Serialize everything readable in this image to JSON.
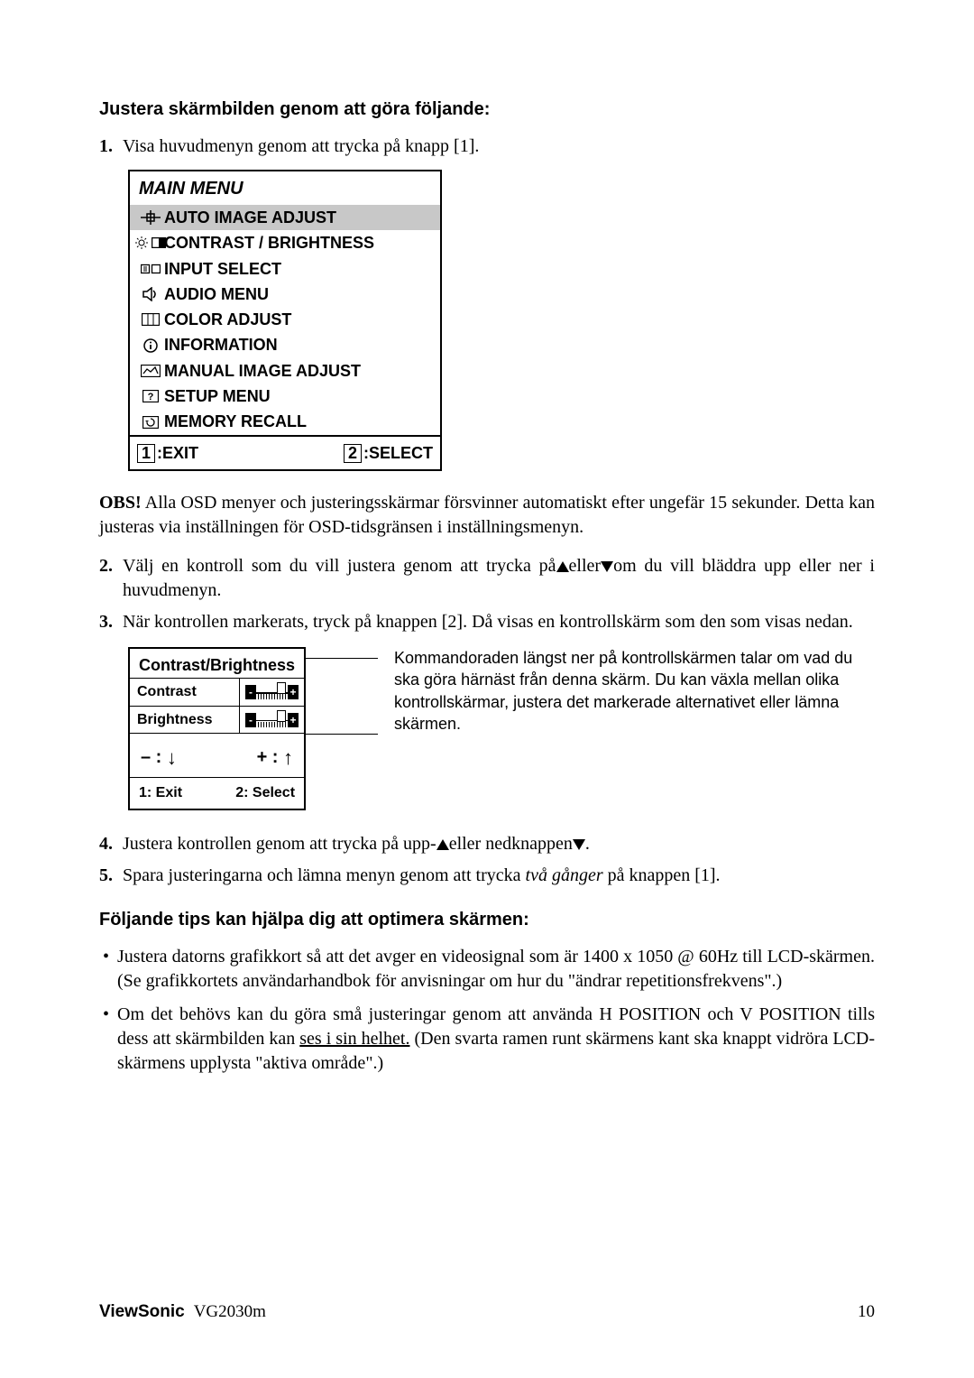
{
  "heading1": "Justera skärmbilden genom att göra följande:",
  "step1": {
    "num": "1.",
    "text": "Visa huvudmenyn genom att trycka på knapp [1]."
  },
  "osd": {
    "title": "MAIN MENU",
    "items": [
      {
        "label": "AUTO IMAGE ADJUST",
        "icon": "crosshair-icon",
        "selected": true
      },
      {
        "label": "CONTRAST / BRIGHTNESS",
        "icon": "contrast-brightness-icon",
        "selected": false
      },
      {
        "label": "INPUT SELECT",
        "icon": "input-select-icon",
        "selected": false
      },
      {
        "label": "AUDIO MENU",
        "icon": "audio-icon",
        "selected": false
      },
      {
        "label": "COLOR ADJUST",
        "icon": "color-adjust-icon",
        "selected": false
      },
      {
        "label": "INFORMATION",
        "icon": "info-icon",
        "selected": false
      },
      {
        "label": "MANUAL IMAGE ADJUST",
        "icon": "manual-adjust-icon",
        "selected": false
      },
      {
        "label": "SETUP MENU",
        "icon": "setup-menu-icon",
        "selected": false
      },
      {
        "label": "MEMORY RECALL",
        "icon": "memory-recall-icon",
        "selected": false
      }
    ],
    "footer": {
      "key1": "1",
      "lab1": ":EXIT",
      "key2": "2",
      "lab2": ":SELECT"
    }
  },
  "note": {
    "label": "OBS!",
    "text": " Alla OSD menyer och justeringsskärmar försvinner automatiskt efter ungefär 15 sekunder. Detta kan justeras via inställningen för OSD-tidsgränsen i inställningsmenyn."
  },
  "step2": {
    "num": "2.",
    "pre": "Välj en kontroll som du vill justera genom att trycka på",
    "mid": "eller",
    "post": "om du vill bläddra upp eller ner i huvudmenyn."
  },
  "step3": {
    "num": "3.",
    "text": "När kontrollen markerats, tryck på knappen [2]. Då visas en kontrollskärm som den som visas nedan."
  },
  "cb": {
    "title": "Contrast/Brightness",
    "row1": "Contrast",
    "row2": "Brightness",
    "mleft": "– :",
    "mright": "+ :",
    "fleft": "1: Exit",
    "fright": "2: Select"
  },
  "callout": "Kommandoraden längst ner på kontrollskärmen talar om vad du ska göra härnäst från denna skärm. Du kan växla mellan olika kontrollskärmar, justera det markerade alternativet eller lämna skärmen.",
  "step4": {
    "num": "4.",
    "pre": "Justera kontrollen genom att trycka på upp-",
    "mid": "eller nedknappen",
    "post": "."
  },
  "step5": {
    "num": "5.",
    "pre": "Spara justeringarna och lämna menyn genom att trycka ",
    "em": "två gånger",
    "post": " på knappen [1]."
  },
  "heading2": "Följande tips kan hjälpa dig att optimera skärmen:",
  "tip1": "Justera datorns grafikkort så att det avger en videosignal som är 1400 x 1050 @ 60Hz till LCD-skärmen. (Se grafikkortets användarhandbok för anvisningar om hur du \"ändrar repetitionsfrekvens\".)",
  "tip2": {
    "pre": "Om det behövs kan du göra små justeringar genom att använda H POSITION och V POSITION tills dess att skärmbilden kan ",
    "und": "ses i sin helhet.",
    "post": " (Den svarta ramen runt skärmens kant ska knappt vidröra LCD-skärmens upplysta \"aktiva område\".)"
  },
  "footer": {
    "brand": "ViewSonic",
    "model": "VG2030m",
    "page": "10"
  },
  "icons": {
    "crosshair-icon": "cross",
    "contrast-brightness-icon": "sun+rect",
    "input-select-icon": "inputsel",
    "audio-icon": "speaker",
    "color-adjust-icon": "rgb",
    "info-icon": "info",
    "manual-adjust-icon": "manual",
    "setup-menu-icon": "question",
    "memory-recall-icon": "recall"
  }
}
